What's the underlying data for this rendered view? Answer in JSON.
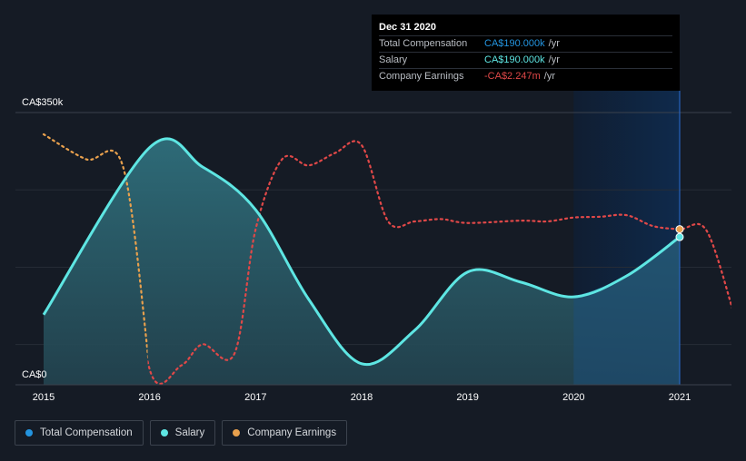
{
  "chart_data": {
    "type": "line",
    "title": "",
    "ylabel": "",
    "xlabel": "",
    "ylim": [
      0,
      350000
    ],
    "y_axis": {
      "top_label": "CA$350k",
      "bottom_label": "CA$0"
    },
    "x_ticks": [
      "2015",
      "2016",
      "2017",
      "2018",
      "2019",
      "2020",
      "2021"
    ],
    "x_range": [
      2015,
      2021.5
    ],
    "highlight_range": [
      2020,
      2021
    ],
    "series": [
      {
        "name": "Total Compensation",
        "color": "#2394df",
        "points": [
          [
            2015,
            90000
          ],
          [
            2016,
            305000
          ],
          [
            2016.5,
            280000
          ],
          [
            2017,
            225000
          ],
          [
            2017.5,
            110000
          ],
          [
            2018,
            27000
          ],
          [
            2018.5,
            70000
          ],
          [
            2019,
            145000
          ],
          [
            2019.5,
            132000
          ],
          [
            2020,
            113000
          ],
          [
            2020.5,
            140000
          ],
          [
            2021,
            190000
          ]
        ]
      },
      {
        "name": "Salary",
        "color": "#5ee6e3",
        "points": [
          [
            2015,
            90000
          ],
          [
            2016,
            305000
          ],
          [
            2016.5,
            280000
          ],
          [
            2017,
            225000
          ],
          [
            2017.5,
            110000
          ],
          [
            2018,
            27000
          ],
          [
            2018.5,
            70000
          ],
          [
            2019,
            145000
          ],
          [
            2019.5,
            132000
          ],
          [
            2020,
            113000
          ],
          [
            2020.5,
            140000
          ],
          [
            2021,
            190000
          ]
        ]
      },
      {
        "name": "Company Earnings",
        "color": "#e8a04d",
        "negative_color": "#e04848",
        "points": [
          [
            2015,
            322000
          ],
          [
            2015.4,
            290000
          ],
          [
            2015.75,
            280000
          ],
          [
            2016,
            20000
          ],
          [
            2016.3,
            25000
          ],
          [
            2016.5,
            52000
          ],
          [
            2016.8,
            40000
          ],
          [
            2017,
            200000
          ],
          [
            2017.25,
            290000
          ],
          [
            2017.5,
            282000
          ],
          [
            2017.75,
            298000
          ],
          [
            2018,
            308000
          ],
          [
            2018.25,
            210000
          ],
          [
            2018.5,
            210000
          ],
          [
            2018.75,
            213000
          ],
          [
            2019,
            208000
          ],
          [
            2019.5,
            211000
          ],
          [
            2019.75,
            210000
          ],
          [
            2020,
            215000
          ],
          [
            2020.25,
            216000
          ],
          [
            2020.5,
            218000
          ],
          [
            2020.75,
            204000
          ],
          [
            2021,
            200000
          ],
          [
            2021.25,
            199000
          ],
          [
            2021.5,
            97000
          ]
        ],
        "positive_until_x": 2016.05
      }
    ]
  },
  "tooltip": {
    "date": "Dec 31 2020",
    "rows": [
      {
        "label": "Total Compensation",
        "value": "CA$190.000k",
        "unit": "/yr",
        "color": "#2394df"
      },
      {
        "label": "Salary",
        "value": "CA$190.000k",
        "unit": "/yr",
        "color": "#5ee6e3"
      },
      {
        "label": "Company Earnings",
        "value": "-CA$2.247m",
        "unit": "/yr",
        "color": "#e04848"
      }
    ]
  },
  "legend": [
    {
      "label": "Total Compensation",
      "color": "#2394df"
    },
    {
      "label": "Salary",
      "color": "#5ee6e3"
    },
    {
      "label": "Company Earnings",
      "color": "#e8a04d"
    }
  ]
}
